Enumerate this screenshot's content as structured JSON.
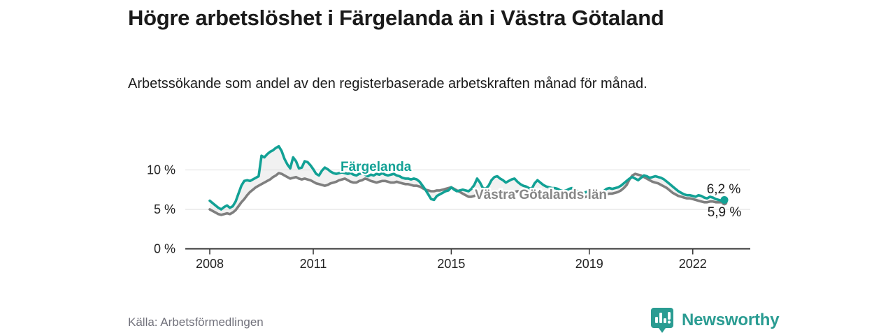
{
  "header": {
    "title": "Högre arbetslöshet i Färgelanda än i Västra Götaland",
    "subtitle": "Arbetssökande som andel av den registerbaserade arbetskraften månad för månad."
  },
  "footer": {
    "source": "Källa: Arbetsförmedlingen",
    "brand": "Newsworthy"
  },
  "colors": {
    "accent_teal": "#12a195",
    "series_gray": "#7f7f7f",
    "fill_between": "#f1f1f1",
    "gridline": "#dcdcdc",
    "axis": "#333333",
    "axis_text": "#222222",
    "value_label": "#1d1d1d",
    "gray_label": "#878787",
    "logo_teal": "#2a9c92"
  },
  "chart_data": {
    "type": "line",
    "title": "Högre arbetslöshet i Färgelanda än i Västra Götaland",
    "ylabel": "",
    "xlabel": "",
    "unit": "%",
    "grid": "horizontal",
    "legend_position": "inline-labels",
    "x_start": {
      "year": 2008,
      "month": 1
    },
    "x_end": {
      "year": 2022,
      "month": 12
    },
    "x_ticks": [
      {
        "year": 2008,
        "label": "2008"
      },
      {
        "year": 2011,
        "label": "2011"
      },
      {
        "year": 2015,
        "label": "2015"
      },
      {
        "year": 2019,
        "label": "2019"
      },
      {
        "year": 2022,
        "label": "2022"
      }
    ],
    "y_ticks": [
      {
        "value": 0,
        "label": "0 %"
      },
      {
        "value": 5,
        "label": "5 %"
      },
      {
        "value": 10,
        "label": "10 %"
      }
    ],
    "ylim": [
      0,
      13.5
    ],
    "series": [
      {
        "name": "Färgelanda",
        "color": "#12a195",
        "end_label": "6,2 %",
        "end_value": 6.2,
        "values": [
          6.1,
          5.8,
          5.5,
          5.2,
          5.0,
          5.3,
          5.5,
          5.2,
          5.4,
          6.0,
          7.0,
          8.0,
          8.6,
          8.7,
          8.6,
          8.8,
          9.0,
          9.2,
          11.8,
          11.6,
          12.0,
          12.3,
          12.5,
          12.8,
          13.0,
          12.4,
          11.4,
          10.7,
          10.2,
          11.6,
          11.1,
          10.2,
          10.3,
          11.1,
          11.0,
          10.6,
          10.1,
          9.5,
          9.3,
          9.9,
          10.3,
          10.1,
          9.8,
          9.6,
          9.5,
          9.6,
          9.7,
          9.6,
          9.5,
          9.6,
          9.4,
          9.3,
          9.5,
          9.6,
          9.4,
          9.2,
          9.4,
          9.3,
          9.5,
          9.4,
          9.6,
          9.4,
          9.3,
          9.4,
          9.5,
          9.3,
          9.2,
          9.0,
          8.9,
          8.9,
          8.8,
          8.9,
          8.8,
          8.5,
          8.0,
          7.5,
          6.9,
          6.3,
          6.2,
          6.7,
          6.9,
          7.1,
          7.3,
          7.4,
          7.8,
          7.5,
          7.3,
          7.4,
          7.5,
          7.4,
          7.3,
          7.6,
          8.1,
          8.9,
          8.4,
          7.7,
          7.6,
          8.0,
          8.7,
          9.1,
          9.2,
          8.9,
          8.7,
          8.4,
          8.6,
          8.8,
          8.9,
          8.5,
          8.2,
          8.0,
          7.9,
          7.7,
          7.6,
          8.3,
          8.7,
          8.4,
          8.1,
          7.9,
          7.8,
          7.7,
          7.7,
          7.6,
          7.4,
          7.3,
          7.4,
          7.6,
          7.7,
          7.5,
          7.3,
          7.2,
          7.1,
          7.2,
          7.3,
          7.4,
          7.3,
          7.2,
          7.1,
          7.3,
          7.6,
          7.7,
          7.6,
          7.7,
          7.8,
          8.0,
          8.3,
          8.6,
          8.9,
          9.1,
          8.9,
          8.7,
          9.0,
          9.3,
          9.2,
          9.0,
          9.1,
          9.2,
          9.1,
          9.0,
          8.8,
          8.5,
          8.2,
          7.9,
          7.6,
          7.3,
          7.1,
          6.9,
          6.8,
          6.8,
          6.7,
          6.6,
          6.8,
          6.7,
          6.5,
          6.4,
          6.6,
          6.5,
          6.3,
          6.2,
          6.1,
          6.2
        ]
      },
      {
        "name": "Västra Götalands län",
        "color": "#7f7f7f",
        "end_label": "5,9 %",
        "end_value": 5.9,
        "values": [
          5.0,
          4.8,
          4.6,
          4.4,
          4.3,
          4.4,
          4.5,
          4.4,
          4.6,
          4.9,
          5.4,
          5.9,
          6.3,
          6.8,
          7.2,
          7.5,
          7.8,
          8.0,
          8.2,
          8.4,
          8.6,
          8.8,
          9.1,
          9.3,
          9.6,
          9.5,
          9.3,
          9.1,
          8.9,
          9.0,
          9.1,
          8.9,
          8.8,
          8.9,
          8.8,
          8.7,
          8.5,
          8.3,
          8.2,
          8.1,
          8.0,
          8.1,
          8.3,
          8.4,
          8.5,
          8.7,
          8.8,
          8.9,
          8.7,
          8.5,
          8.4,
          8.4,
          8.6,
          8.7,
          8.9,
          8.8,
          8.6,
          8.5,
          8.4,
          8.5,
          8.6,
          8.6,
          8.5,
          8.4,
          8.4,
          8.5,
          8.4,
          8.3,
          8.2,
          8.2,
          8.1,
          8.0,
          8.0,
          7.9,
          7.7,
          7.5,
          7.4,
          7.3,
          7.3,
          7.4,
          7.4,
          7.5,
          7.6,
          7.7,
          7.8,
          7.6,
          7.4,
          7.2,
          7.0,
          6.8,
          6.6,
          6.6,
          6.7,
          6.9,
          7.0,
          7.1,
          7.2,
          7.2,
          7.1,
          7.0,
          7.0,
          7.1,
          7.2,
          7.3,
          7.3,
          7.2,
          7.2,
          7.3,
          7.3,
          7.2,
          7.1,
          7.0,
          7.0,
          7.1,
          7.2,
          7.2,
          7.1,
          7.0,
          6.9,
          7.0,
          7.0,
          6.9,
          6.8,
          6.7,
          6.6,
          6.7,
          6.8,
          6.8,
          6.7,
          6.6,
          6.5,
          6.6,
          6.7,
          6.7,
          6.6,
          6.5,
          6.5,
          6.7,
          6.9,
          7.0,
          7.0,
          7.1,
          7.2,
          7.4,
          7.7,
          8.1,
          8.8,
          9.3,
          9.5,
          9.4,
          9.3,
          9.1,
          8.9,
          8.7,
          8.5,
          8.4,
          8.3,
          8.1,
          7.9,
          7.7,
          7.4,
          7.1,
          6.9,
          6.7,
          6.6,
          6.5,
          6.4,
          6.4,
          6.3,
          6.2,
          6.1,
          6.0,
          5.9,
          5.9,
          6.0,
          6.0,
          5.9,
          5.9,
          5.9,
          5.9
        ]
      }
    ]
  }
}
